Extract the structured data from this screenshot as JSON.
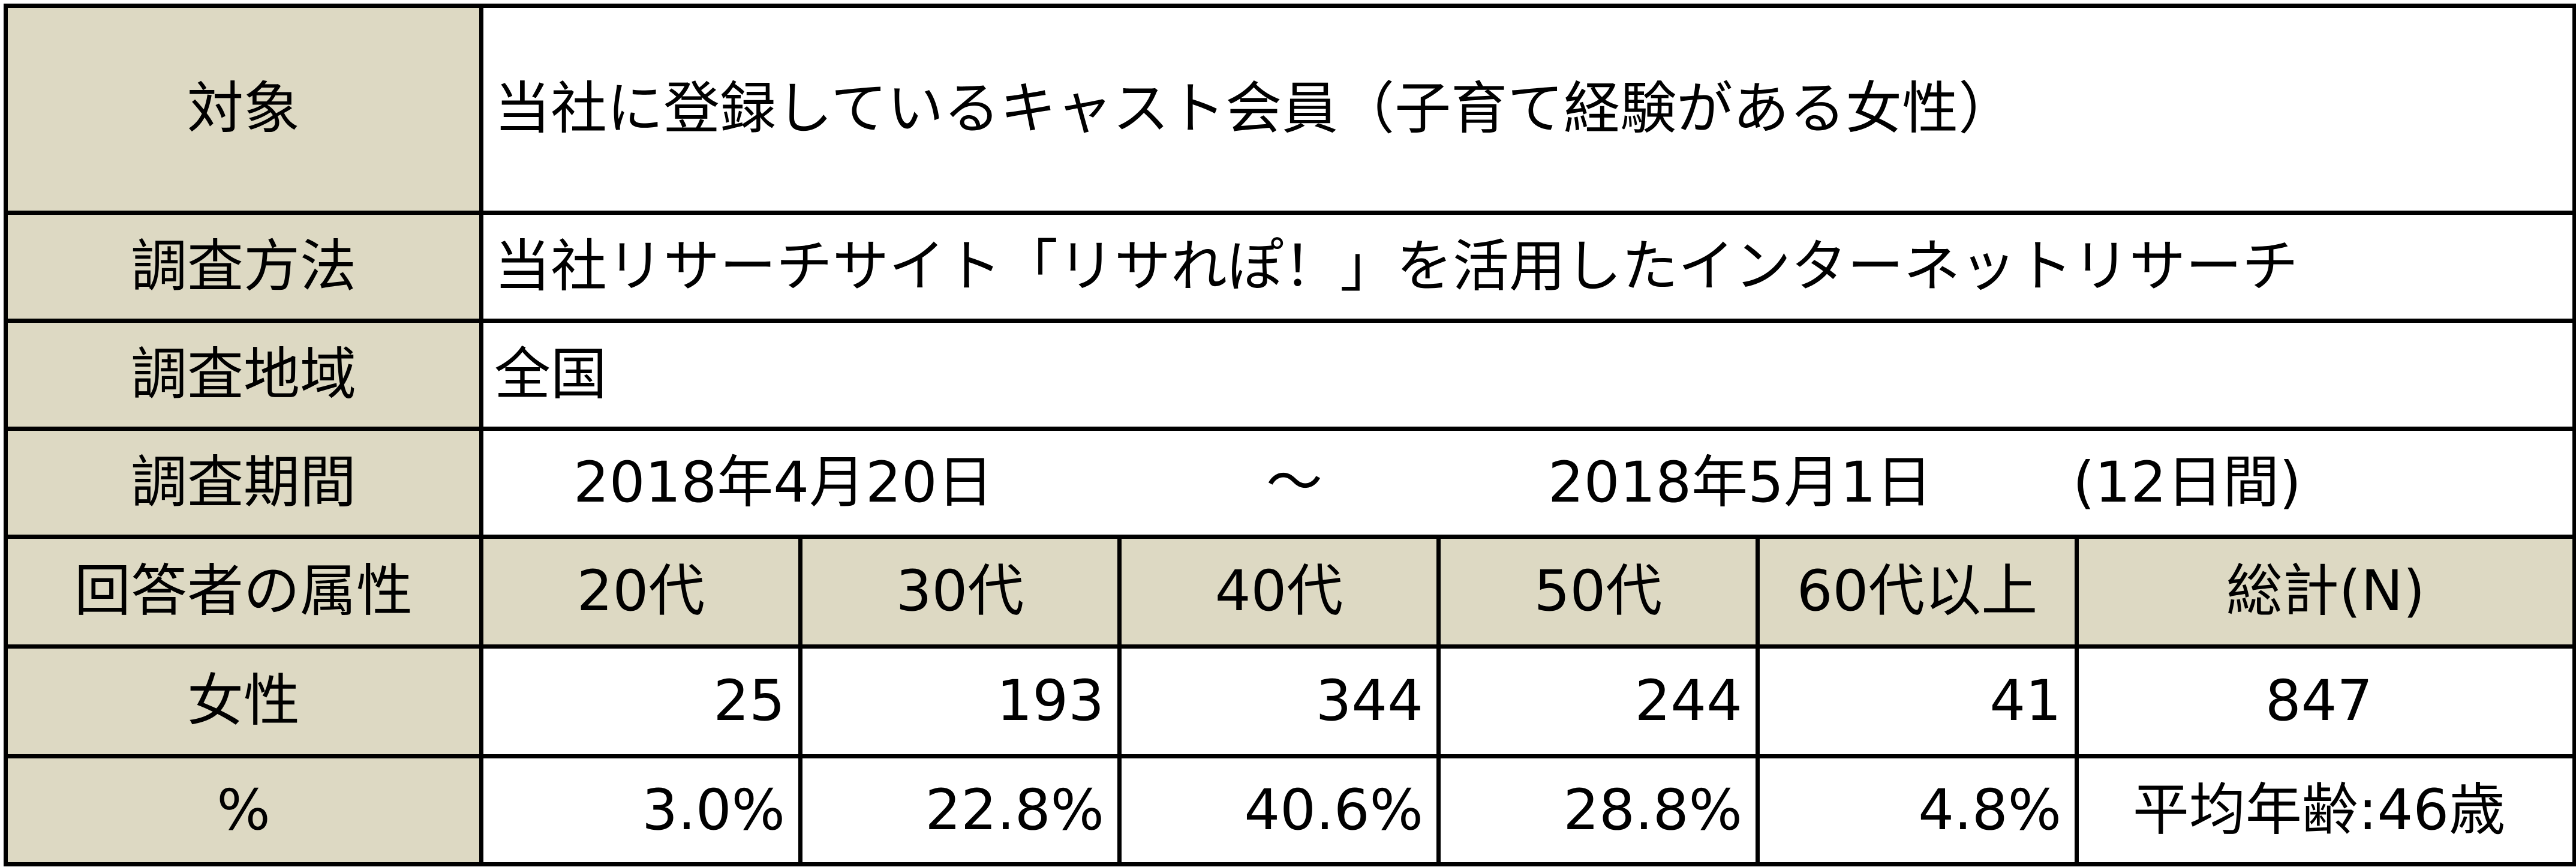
{
  "rows": {
    "target": {
      "label": "対象",
      "value": "当社に登録しているキャスト会員（子育て経験がある女性）"
    },
    "method": {
      "label": "調査方法",
      "value": "当社リサーチサイト「リサれぽ！」を活用したインターネットリサーチ"
    },
    "region": {
      "label": "調査地域",
      "value": "全国"
    },
    "period": {
      "label": "調査期間",
      "start": "2018年4月20日",
      "separator": "～",
      "end": "2018年5月1日",
      "days": "(12日間)"
    }
  },
  "attributes": {
    "label": "回答者の属性",
    "columns": [
      "20代",
      "30代",
      "40代",
      "50代",
      "60代以上",
      "総計(N)"
    ],
    "female": {
      "label": "女性",
      "counts": [
        "25",
        "193",
        "344",
        "244",
        "41",
        "847"
      ]
    },
    "percent": {
      "label": "%",
      "values": [
        "3.0%",
        "22.8%",
        "40.6%",
        "28.8%",
        "4.8%",
        "平均年齢:46歳"
      ]
    }
  },
  "colors": {
    "label_background": "#ddd9c3",
    "border": "#000000",
    "cell_background": "#ffffff"
  }
}
